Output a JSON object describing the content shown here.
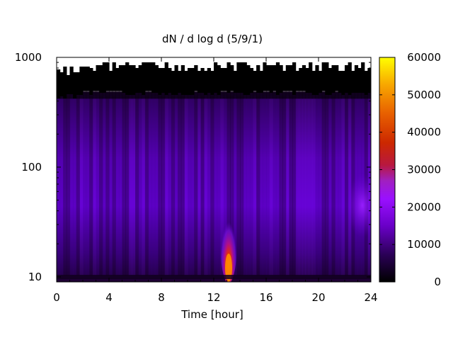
{
  "chart_data": {
    "type": "heatmap",
    "title": "dN / d log d (5/9/1)",
    "xlabel": "Time [hour]",
    "ylabel": "",
    "xlim": [
      0,
      24
    ],
    "ylim": [
      9,
      1000
    ],
    "y_scale": "log",
    "x_ticks": [
      0,
      4,
      8,
      12,
      16,
      20,
      24
    ],
    "x_tick_labels": [
      "0",
      "4",
      "8",
      "12",
      "16",
      "20",
      "24"
    ],
    "y_ticks": [
      10,
      100,
      1000
    ],
    "y_tick_labels": [
      "10",
      "100",
      "1000"
    ],
    "colorbar": {
      "range": [
        0,
        60000
      ],
      "ticks": [
        0,
        10000,
        20000,
        30000,
        40000,
        50000,
        60000
      ],
      "tick_labels": [
        "0",
        "10000",
        "20000",
        "30000",
        "40000",
        "50000",
        "60000"
      ],
      "colormap": "gnuplot black-purple-red-orange-yellow"
    },
    "features": [
      {
        "name": "background",
        "diameter_range": [
          10,
          400
        ],
        "value": 6000
      },
      {
        "name": "accumulation-mode band",
        "diameter_range": [
          30,
          300
        ],
        "value": 10000
      },
      {
        "name": "nucleation burst",
        "time": 13.2,
        "diameter_peak": 11,
        "value": 50000
      },
      {
        "name": "late-evening mode",
        "time": 23.5,
        "diameter_peak": 45,
        "value": 16000
      },
      {
        "name": "no-data region",
        "diameter_range": [
          420,
          1000
        ],
        "value": 0
      }
    ]
  }
}
